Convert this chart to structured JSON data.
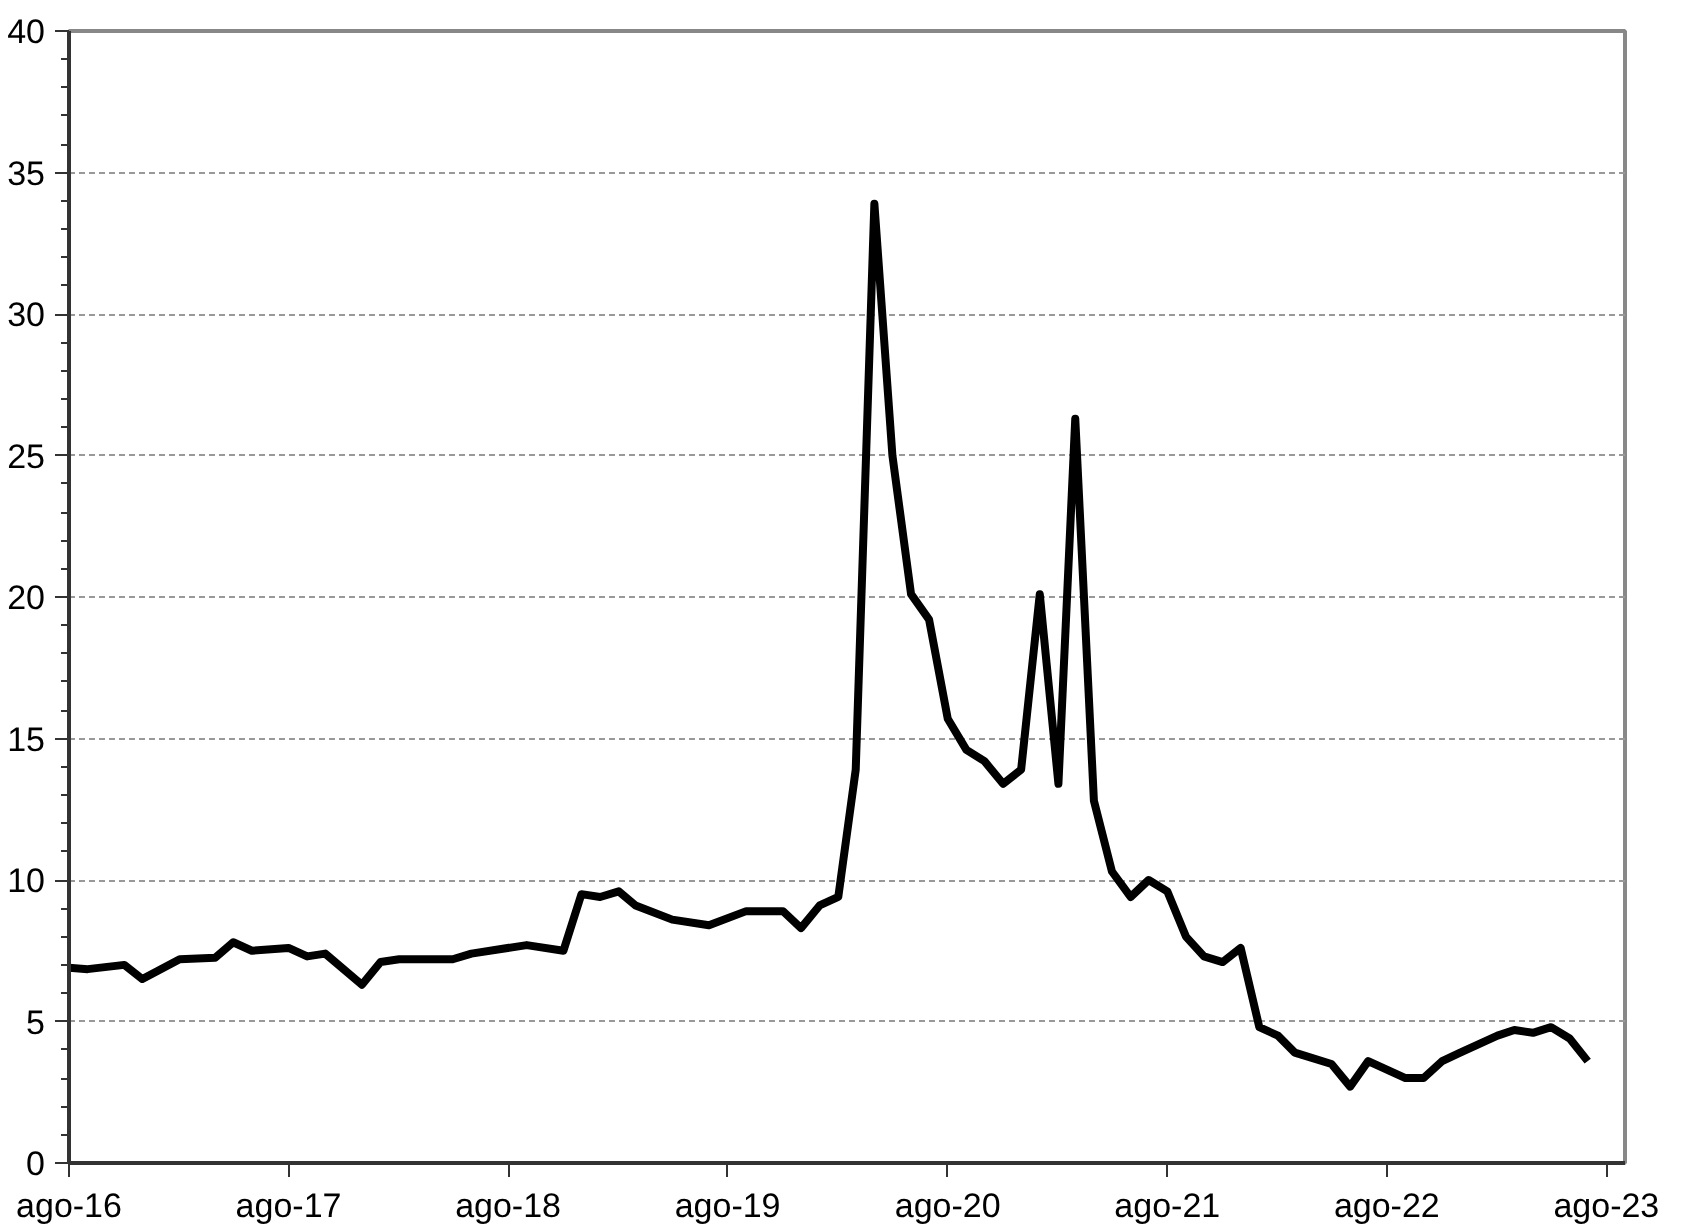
{
  "chart_data": {
    "type": "line",
    "x": [
      "2016-08",
      "2016-09",
      "2016-11",
      "2016-12",
      "2017-02",
      "2017-04",
      "2017-05",
      "2017-06",
      "2017-08",
      "2017-09",
      "2017-10",
      "2017-12",
      "2018-01",
      "2018-02",
      "2018-05",
      "2018-06",
      "2018-09",
      "2018-11",
      "2018-12",
      "2019-01",
      "2019-02",
      "2019-03",
      "2019-05",
      "2019-07",
      "2019-09",
      "2019-11",
      "2019-12",
      "2020-01",
      "2020-02",
      "2020-03",
      "2020-04",
      "2020-05",
      "2020-06",
      "2020-07",
      "2020-08",
      "2020-09",
      "2020-10",
      "2020-11",
      "2020-12",
      "2021-01",
      "2021-02",
      "2021-03",
      "2021-04",
      "2021-05",
      "2021-06",
      "2021-07",
      "2021-08",
      "2021-09",
      "2021-10",
      "2021-11",
      "2021-12",
      "2022-01",
      "2022-02",
      "2022-03",
      "2022-05",
      "2022-06",
      "2022-07",
      "2022-09",
      "2022-10",
      "2022-11",
      "2022-12",
      "2023-02",
      "2023-03",
      "2023-04",
      "2023-05",
      "2023-06",
      "2023-07"
    ],
    "series": [
      {
        "color": "#000000",
        "values": [
          6.9,
          6.85,
          7.0,
          6.5,
          7.2,
          7.25,
          7.8,
          7.5,
          7.6,
          7.3,
          7.4,
          6.3,
          7.1,
          7.2,
          7.2,
          7.4,
          7.7,
          7.5,
          9.5,
          9.4,
          9.6,
          9.1,
          8.6,
          8.4,
          8.9,
          8.9,
          8.3,
          9.1,
          9.4,
          13.9,
          33.9,
          25.0,
          20.1,
          19.2,
          15.7,
          14.6,
          14.2,
          13.4,
          13.9,
          20.1,
          13.4,
          26.3,
          12.8,
          10.3,
          9.4,
          10.0,
          9.6,
          8.0,
          7.3,
          7.1,
          7.6,
          4.8,
          4.5,
          3.9,
          3.5,
          2.7,
          3.6,
          3.0,
          3.0,
          3.6,
          3.9,
          4.5,
          4.7,
          4.6,
          4.8,
          4.4,
          3.6
        ]
      }
    ],
    "xlim": [
      "2016-08",
      "2023-09"
    ],
    "xticks": [
      {
        "value": "2016-08",
        "label": "ago-16"
      },
      {
        "value": "2017-08",
        "label": "ago-17"
      },
      {
        "value": "2018-08",
        "label": "ago-18"
      },
      {
        "value": "2019-08",
        "label": "ago-19"
      },
      {
        "value": "2020-08",
        "label": "ago-20"
      },
      {
        "value": "2021-08",
        "label": "ago-21"
      },
      {
        "value": "2022-08",
        "label": "ago-22"
      },
      {
        "value": "2023-08",
        "label": "ago-23"
      }
    ],
    "ylim": [
      0,
      40
    ],
    "yticks": [
      0,
      5,
      10,
      15,
      20,
      25,
      30,
      35,
      40
    ],
    "grid": "y",
    "marker": "none",
    "line_style": "solid"
  }
}
